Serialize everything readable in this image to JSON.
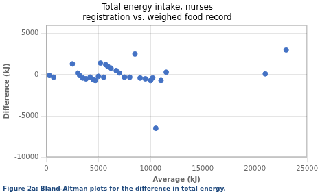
{
  "chart_data": {
    "type": "scatter",
    "title": "Total energy intake, nurses\nregistration vs. weighed food record",
    "xlabel": "Average (kJ)",
    "ylabel": "Difference (kJ)",
    "caption": "Figure 2a: Bland-Altman plots for the difference in total energy.",
    "x": [
      300,
      700,
      2500,
      3000,
      3200,
      3500,
      3800,
      4200,
      4500,
      4700,
      5000,
      5200,
      5500,
      5700,
      5900,
      6200,
      6700,
      7000,
      7500,
      8000,
      8500,
      9000,
      9500,
      10000,
      10200,
      10500,
      11000,
      11500,
      21000,
      23000
    ],
    "values": [
      -100,
      -300,
      1300,
      200,
      -100,
      -400,
      -500,
      -300,
      -600,
      -700,
      -200,
      1400,
      -300,
      1200,
      1000,
      800,
      500,
      200,
      -300,
      -300,
      2500,
      -400,
      -500,
      -700,
      -400,
      -6500,
      -700,
      300,
      100,
      3000
    ],
    "color": "#4472C4",
    "xlim": [
      0,
      25000
    ],
    "ylim": [
      -10000,
      6000
    ],
    "xticks": [
      0,
      5000,
      10000,
      15000,
      20000,
      25000
    ],
    "yticks": [
      -10000,
      -5000,
      0,
      5000
    ],
    "grid": true
  }
}
